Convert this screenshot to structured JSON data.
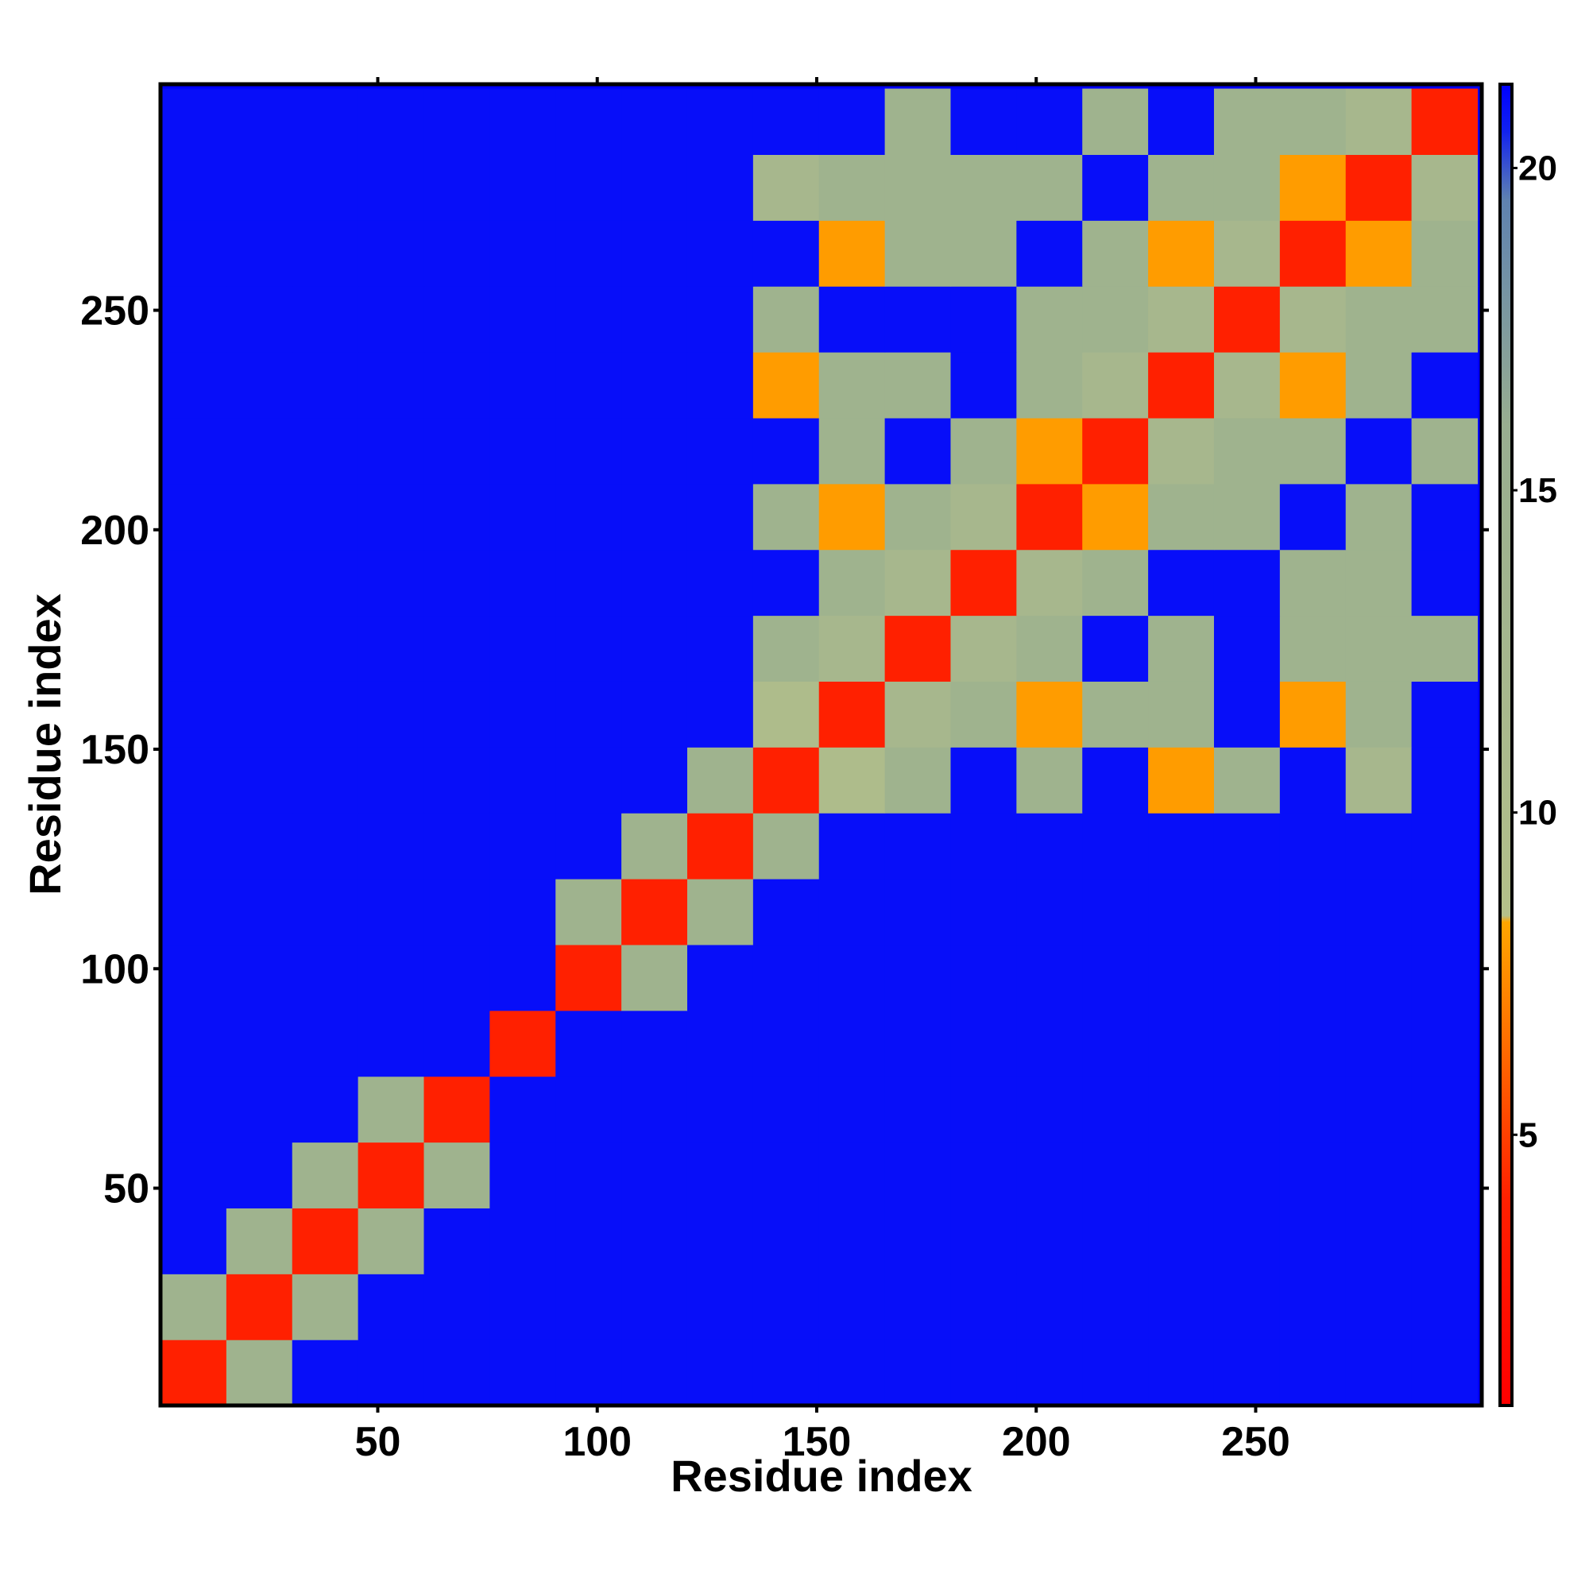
{
  "chart_data": {
    "type": "heatmap",
    "x_label": "Residue index",
    "y_label": "Residue index",
    "x": [
      8,
      23,
      38,
      53,
      68,
      83,
      98,
      113,
      128,
      143,
      158,
      173,
      188,
      203,
      218,
      233,
      248,
      263,
      278,
      293
    ],
    "y": [
      8,
      23,
      38,
      53,
      68,
      83,
      98,
      113,
      128,
      143,
      158,
      173,
      188,
      203,
      218,
      233,
      248,
      263,
      278,
      293
    ],
    "values": [
      [
        4,
        14,
        21,
        21,
        21,
        21,
        21,
        21,
        21,
        21,
        21,
        21,
        21,
        21,
        21,
        21,
        21,
        21,
        21,
        21
      ],
      [
        14,
        4,
        14,
        21,
        21,
        21,
        21,
        21,
        21,
        21,
        21,
        21,
        21,
        21,
        21,
        21,
        21,
        21,
        21,
        21
      ],
      [
        21,
        14,
        4,
        14,
        21,
        21,
        21,
        21,
        21,
        21,
        21,
        21,
        21,
        21,
        21,
        21,
        21,
        21,
        21,
        21
      ],
      [
        21,
        21,
        14,
        4,
        14,
        21,
        21,
        21,
        21,
        21,
        21,
        21,
        21,
        21,
        21,
        21,
        21,
        21,
        21,
        21
      ],
      [
        21,
        21,
        21,
        14,
        4,
        21,
        21,
        21,
        21,
        21,
        21,
        21,
        21,
        21,
        21,
        21,
        21,
        21,
        21,
        21
      ],
      [
        21,
        21,
        21,
        21,
        21,
        4,
        21,
        21,
        21,
        21,
        21,
        21,
        21,
        21,
        21,
        21,
        21,
        21,
        21,
        21
      ],
      [
        21,
        21,
        21,
        21,
        21,
        21,
        4,
        14,
        21,
        21,
        21,
        21,
        21,
        21,
        21,
        21,
        21,
        21,
        21,
        21
      ],
      [
        21,
        21,
        21,
        21,
        21,
        21,
        14,
        4,
        14,
        21,
        21,
        21,
        21,
        21,
        21,
        21,
        21,
        21,
        21,
        21
      ],
      [
        21,
        21,
        21,
        21,
        21,
        21,
        21,
        14,
        4,
        14,
        21,
        21,
        21,
        21,
        21,
        21,
        21,
        21,
        21,
        21
      ],
      [
        21,
        21,
        21,
        21,
        21,
        21,
        21,
        21,
        14,
        4,
        10,
        14,
        21,
        14,
        21,
        8,
        14,
        21,
        12,
        21
      ],
      [
        21,
        21,
        21,
        21,
        21,
        21,
        21,
        21,
        21,
        10,
        4,
        12,
        14,
        8,
        14,
        14,
        21,
        8,
        14,
        21
      ],
      [
        21,
        21,
        21,
        21,
        21,
        21,
        21,
        21,
        21,
        14,
        12,
        4,
        12,
        14,
        21,
        14,
        21,
        14,
        14,
        14
      ],
      [
        21,
        21,
        21,
        21,
        21,
        21,
        21,
        21,
        21,
        21,
        14,
        12,
        4,
        12,
        14,
        21,
        21,
        14,
        14,
        21
      ],
      [
        21,
        21,
        21,
        21,
        21,
        21,
        21,
        21,
        21,
        14,
        8,
        14,
        12,
        4,
        8,
        14,
        14,
        21,
        14,
        21
      ],
      [
        21,
        21,
        21,
        21,
        21,
        21,
        21,
        21,
        21,
        21,
        14,
        21,
        14,
        8,
        4,
        12,
        14,
        14,
        21,
        14
      ],
      [
        21,
        21,
        21,
        21,
        21,
        21,
        21,
        21,
        21,
        8,
        14,
        14,
        21,
        14,
        12,
        4,
        12,
        8,
        14,
        21
      ],
      [
        21,
        21,
        21,
        21,
        21,
        21,
        21,
        21,
        21,
        14,
        21,
        21,
        21,
        14,
        14,
        12,
        4,
        12,
        14,
        14
      ],
      [
        21,
        21,
        21,
        21,
        21,
        21,
        21,
        21,
        21,
        21,
        8,
        14,
        14,
        21,
        14,
        8,
        12,
        4,
        8,
        14
      ],
      [
        21,
        21,
        21,
        21,
        21,
        21,
        21,
        21,
        21,
        12,
        14,
        14,
        14,
        14,
        21,
        14,
        14,
        8,
        4,
        12
      ],
      [
        21,
        21,
        21,
        21,
        21,
        21,
        21,
        21,
        21,
        21,
        21,
        14,
        21,
        21,
        14,
        21,
        14,
        14,
        12,
        4
      ]
    ],
    "xlim": [
      0.5,
      301.5
    ],
    "ylim": [
      0.5,
      301.5
    ],
    "xticks": [
      50,
      100,
      150,
      200,
      250
    ],
    "yticks": [
      50,
      100,
      150,
      200,
      250
    ],
    "zlim": [
      0.8,
      21.3
    ],
    "zticks": [
      5,
      10,
      15,
      20
    ],
    "colorscale": [
      [
        0.8,
        "#ff0000"
      ],
      [
        4,
        "#ff2000"
      ],
      [
        6.5,
        "#ff7000"
      ],
      [
        8.3,
        "#ffa500"
      ],
      [
        8.4,
        "#b4c08a"
      ],
      [
        16,
        "#98ae90"
      ],
      [
        19.5,
        "#5f82b0"
      ],
      [
        20.6,
        "#1020f0"
      ],
      [
        21.3,
        "#0000ff"
      ]
    ]
  }
}
